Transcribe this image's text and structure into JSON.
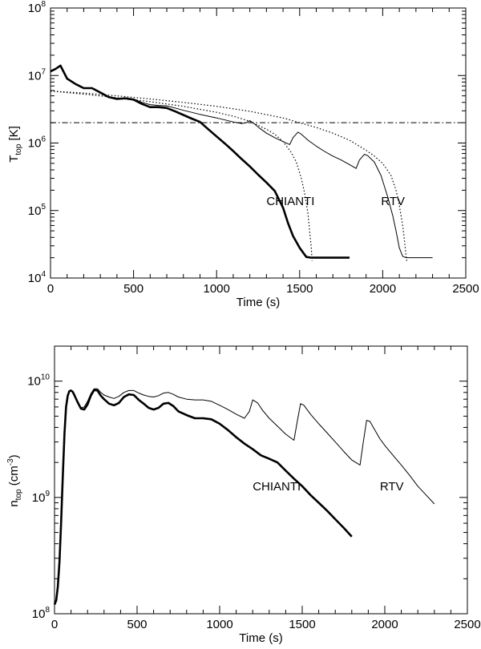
{
  "chart_data": [
    {
      "type": "line",
      "xlabel": "Time (s)",
      "ylabel_main": "T",
      "ylabel_sub": "top",
      "ylabel_unit": " [K]",
      "xlim": [
        0,
        2500
      ],
      "ylim": [
        10000,
        100000000
      ],
      "yscale": "log",
      "xticks": [
        0,
        500,
        1000,
        1500,
        2000,
        2500
      ],
      "yticks": [
        {
          "v": 10000,
          "base": "10",
          "exp": "4"
        },
        {
          "v": 100000,
          "base": "10",
          "exp": "5"
        },
        {
          "v": 1000000,
          "base": "10",
          "exp": "6"
        },
        {
          "v": 10000000,
          "base": "10",
          "exp": "7"
        },
        {
          "v": 100000000,
          "base": "10",
          "exp": "8"
        }
      ],
      "annotations": [
        {
          "text": "CHIANTI",
          "x": 1300,
          "y": 120000
        },
        {
          "text": "RTV",
          "x": 1990,
          "y": 120000
        }
      ],
      "hline": {
        "y": 2000000,
        "style": "dashdot"
      },
      "series": [
        {
          "label": "CHIANTI",
          "style": "thick",
          "x": [
            0,
            30,
            60,
            100,
            150,
            200,
            250,
            300,
            350,
            400,
            450,
            500,
            550,
            600,
            650,
            700,
            750,
            800,
            850,
            900,
            950,
            1000,
            1050,
            1100,
            1150,
            1200,
            1250,
            1300,
            1350,
            1400,
            1430,
            1460,
            1500,
            1540,
            1570,
            1800
          ],
          "y": [
            11500000,
            12500000,
            14000000,
            9000000,
            7500000,
            6500000,
            6500000,
            5600000,
            4800000,
            4500000,
            4600000,
            4400000,
            3800000,
            3400000,
            3400000,
            3300000,
            2950000,
            2600000,
            2300000,
            2050000,
            1600000,
            1250000,
            980000,
            760000,
            580000,
            450000,
            340000,
            260000,
            195000,
            110000,
            65000,
            42000,
            28000,
            20500,
            20000,
            20000
          ]
        },
        {
          "label": "RTV",
          "style": "thin",
          "x": [
            0,
            30,
            60,
            100,
            150,
            200,
            250,
            300,
            350,
            400,
            450,
            500,
            550,
            600,
            650,
            700,
            750,
            800,
            850,
            900,
            950,
            1000,
            1050,
            1100,
            1150,
            1180,
            1200,
            1230,
            1260,
            1300,
            1350,
            1400,
            1440,
            1460,
            1490,
            1510,
            1550,
            1600,
            1650,
            1700,
            1750,
            1800,
            1840,
            1860,
            1890,
            1910,
            1950,
            1990,
            2030,
            2060,
            2080,
            2100,
            2120,
            2140,
            2300
          ],
          "y": [
            11500000,
            12500000,
            14000000,
            9000000,
            7500000,
            6500000,
            6500000,
            5600000,
            4800000,
            4500000,
            4600000,
            4500000,
            4000000,
            3700000,
            3600000,
            3550000,
            3300000,
            3050000,
            2850000,
            2650000,
            2500000,
            2350000,
            2200000,
            2050000,
            1950000,
            2000000,
            2150000,
            1900000,
            1650000,
            1400000,
            1200000,
            1050000,
            950000,
            1200000,
            1450000,
            1350000,
            1100000,
            900000,
            750000,
            640000,
            560000,
            480000,
            420000,
            560000,
            680000,
            650000,
            520000,
            330000,
            160000,
            85000,
            50000,
            28000,
            21000,
            20000,
            20000
          ]
        },
        {
          "label": "",
          "style": "dotted",
          "x": [
            0,
            200,
            400,
            600,
            800,
            1000,
            1100,
            1200,
            1300,
            1350,
            1400,
            1450,
            1480,
            1510,
            1530,
            1550,
            1560,
            1570,
            1575
          ],
          "y": [
            5900000,
            5300000,
            4700000,
            4100000,
            3500000,
            2850000,
            2500000,
            2100000,
            1600000,
            1350000,
            1050000,
            720000,
            520000,
            300000,
            180000,
            90000,
            50000,
            28000,
            18000
          ]
        },
        {
          "label": "",
          "style": "dotted",
          "x": [
            0,
            200,
            400,
            600,
            800,
            1000,
            1200,
            1400,
            1600,
            1700,
            1800,
            1900,
            1950,
            2000,
            2050,
            2080,
            2100,
            2120,
            2130,
            2140,
            2145
          ],
          "y": [
            5900000,
            5500000,
            5000000,
            4500000,
            4000000,
            3500000,
            2950000,
            2350000,
            1700000,
            1400000,
            1100000,
            780000,
            640000,
            500000,
            330000,
            200000,
            120000,
            60000,
            38000,
            22000,
            18000
          ]
        }
      ]
    },
    {
      "type": "line",
      "xlabel": "Time (s)",
      "ylabel_main": "n",
      "ylabel_sub": "top",
      "ylabel_unit_pre": " (cm",
      "ylabel_unit_sup": "-3",
      "ylabel_unit_post": ")",
      "xlim": [
        0,
        2500
      ],
      "ylim": [
        100000000,
        20000000000
      ],
      "yscale": "log",
      "xticks": [
        0,
        500,
        1000,
        1500,
        2000,
        2500
      ],
      "yticks": [
        {
          "v": 100000000,
          "base": "10",
          "exp": "8"
        },
        {
          "v": 1000000000,
          "base": "10",
          "exp": "9"
        },
        {
          "v": 10000000000,
          "base": "10",
          "exp": "10"
        }
      ],
      "annotations": [
        {
          "text": "CHIANTI",
          "x": 1200,
          "y": 1150000000
        },
        {
          "text": "RTV",
          "x": 1970,
          "y": 1150000000
        }
      ],
      "series": [
        {
          "label": "CHIANTI",
          "style": "thick",
          "x": [
            0,
            10,
            20,
            30,
            40,
            50,
            60,
            70,
            80,
            90,
            100,
            110,
            120,
            140,
            160,
            180,
            200,
            220,
            240,
            260,
            280,
            300,
            330,
            360,
            390,
            420,
            450,
            480,
            510,
            540,
            570,
            600,
            630,
            660,
            690,
            720,
            750,
            800,
            850,
            900,
            950,
            1000,
            1050,
            1100,
            1150,
            1200,
            1250,
            1300,
            1350,
            1400,
            1450,
            1500,
            1550,
            1600,
            1650,
            1700,
            1750,
            1800
          ],
          "y": [
            120000000,
            130000000,
            170000000,
            280000000,
            600000000,
            1500000000,
            3500000000,
            6000000000,
            7500000000,
            8200000000,
            8300000000,
            8100000000,
            7600000000,
            6600000000,
            5800000000,
            5700000000,
            6300000000,
            7500000000,
            8400000000,
            8300000000,
            7500000000,
            7000000000,
            6400000000,
            6200000000,
            6500000000,
            7300000000,
            7700000000,
            7600000000,
            6900000000,
            6400000000,
            5900000000,
            5700000000,
            5900000000,
            6400000000,
            6500000000,
            6100000000,
            5500000000,
            5100000000,
            4800000000,
            4800000000,
            4700000000,
            4300000000,
            3800000000,
            3300000000,
            2900000000,
            2600000000,
            2300000000,
            2150000000,
            2000000000,
            1700000000,
            1450000000,
            1250000000,
            1050000000,
            900000000,
            770000000,
            650000000,
            550000000,
            460000000
          ]
        },
        {
          "label": "RTV",
          "style": "thin",
          "x": [
            0,
            10,
            20,
            30,
            40,
            50,
            60,
            70,
            80,
            90,
            100,
            110,
            120,
            140,
            160,
            180,
            200,
            220,
            240,
            260,
            280,
            300,
            330,
            360,
            390,
            420,
            450,
            480,
            510,
            540,
            570,
            600,
            630,
            660,
            690,
            720,
            750,
            800,
            850,
            900,
            950,
            1000,
            1050,
            1100,
            1150,
            1180,
            1200,
            1230,
            1260,
            1300,
            1350,
            1400,
            1450,
            1470,
            1490,
            1510,
            1550,
            1600,
            1650,
            1700,
            1750,
            1800,
            1850,
            1870,
            1890,
            1910,
            1940,
            1970,
            2000,
            2050,
            2100,
            2150,
            2200,
            2250,
            2300
          ],
          "y": [
            120000000,
            130000000,
            170000000,
            280000000,
            600000000,
            1500000000,
            3500000000,
            6000000000,
            7500000000,
            8200000000,
            8300000000,
            8100000000,
            7600000000,
            6600000000,
            5900000000,
            6000000000,
            6700000000,
            7800000000,
            8600000000,
            8600000000,
            8000000000,
            7600000000,
            7300000000,
            7100000000,
            7400000000,
            8000000000,
            8300000000,
            8300000000,
            7900000000,
            7600000000,
            7400000000,
            7300000000,
            7500000000,
            7900000000,
            8000000000,
            7700000000,
            7300000000,
            7000000000,
            6900000000,
            6900000000,
            6700000000,
            6200000000,
            5700000000,
            5200000000,
            4800000000,
            5500000000,
            6900000000,
            6500000000,
            5600000000,
            4800000000,
            4100000000,
            3500000000,
            3100000000,
            4500000000,
            6400000000,
            6200000000,
            5200000000,
            4300000000,
            3600000000,
            3000000000,
            2500000000,
            2100000000,
            1900000000,
            3000000000,
            4600000000,
            4500000000,
            3800000000,
            3200000000,
            2800000000,
            2300000000,
            1900000000,
            1550000000,
            1250000000,
            1050000000,
            880000000
          ]
        }
      ]
    }
  ]
}
